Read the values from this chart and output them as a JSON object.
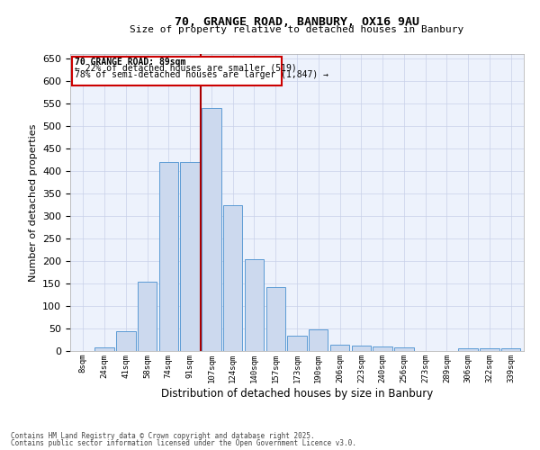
{
  "title1": "70, GRANGE ROAD, BANBURY, OX16 9AU",
  "title2": "Size of property relative to detached houses in Banbury",
  "xlabel": "Distribution of detached houses by size in Banbury",
  "ylabel": "Number of detached properties",
  "bar_labels": [
    "8sqm",
    "24sqm",
    "41sqm",
    "58sqm",
    "74sqm",
    "91sqm",
    "107sqm",
    "124sqm",
    "140sqm",
    "157sqm",
    "173sqm",
    "190sqm",
    "206sqm",
    "223sqm",
    "240sqm",
    "256sqm",
    "273sqm",
    "289sqm",
    "306sqm",
    "322sqm",
    "339sqm"
  ],
  "bar_heights": [
    0,
    8,
    45,
    155,
    420,
    420,
    540,
    325,
    205,
    143,
    35,
    48,
    15,
    13,
    10,
    8,
    0,
    0,
    6,
    6,
    6
  ],
  "bar_color": "#ccd9ee",
  "bar_edge_color": "#5b9bd5",
  "vline_x": 5.5,
  "vline_color": "#aa0000",
  "annotation_title": "70 GRANGE ROAD: 89sqm",
  "annotation_line1": "← 22% of detached houses are smaller (519)",
  "annotation_line2": "78% of semi-detached houses are larger (1,847) →",
  "annotation_box_color": "#ffffff",
  "annotation_box_edge": "#cc0000",
  "ylim": [
    0,
    660
  ],
  "yticks": [
    0,
    50,
    100,
    150,
    200,
    250,
    300,
    350,
    400,
    450,
    500,
    550,
    600,
    650
  ],
  "footnote1": "Contains HM Land Registry data © Crown copyright and database right 2025.",
  "footnote2": "Contains public sector information licensed under the Open Government Licence v3.0.",
  "bg_color": "#edf2fc",
  "grid_color": "#c8d0e8"
}
